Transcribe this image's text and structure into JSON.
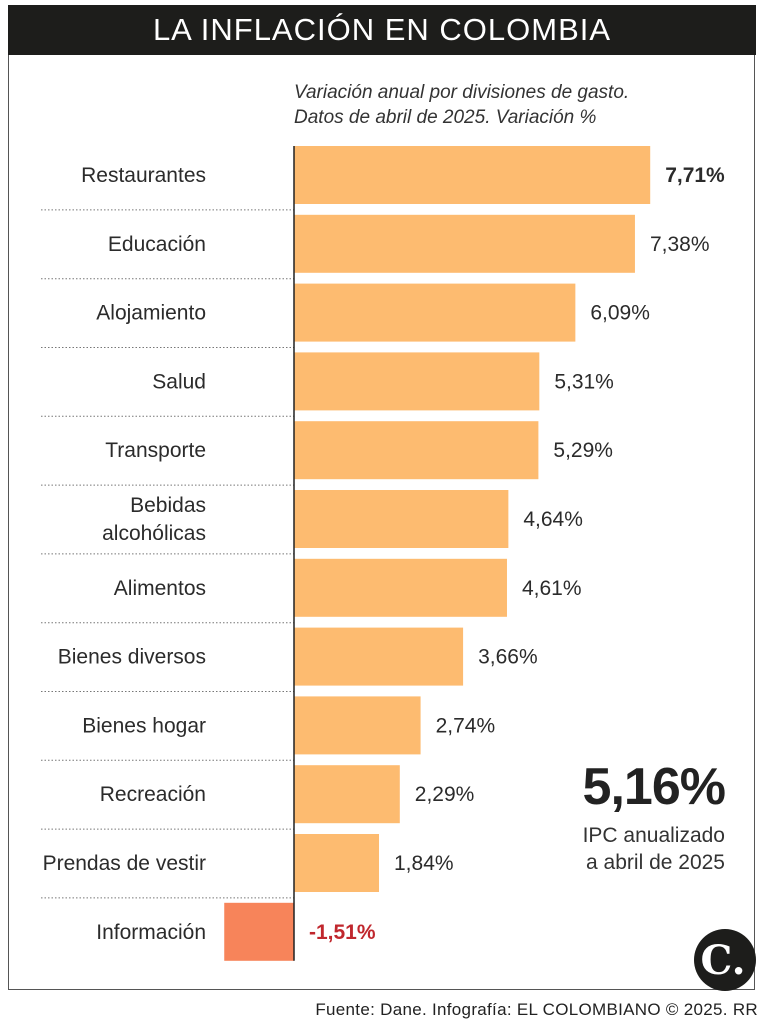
{
  "header": {
    "title": "LA INFLACIÓN EN COLOMBIA"
  },
  "subtitle": {
    "line1": "Variación anual por divisiones de gasto.",
    "line2": "Datos de abril de 2025. Variación %"
  },
  "chart_data": {
    "type": "bar",
    "orientation": "horizontal",
    "categories": [
      "Restaurantes",
      "Educación",
      "Alojamiento",
      "Salud",
      "Transporte",
      "Bebidas alcohólicas",
      "Alimentos",
      "Bienes diversos",
      "Bienes hogar",
      "Recreación",
      "Prendas de vestir",
      "Información"
    ],
    "category_lines": [
      [
        "Restaurantes"
      ],
      [
        "Educación"
      ],
      [
        "Alojamiento"
      ],
      [
        "Salud"
      ],
      [
        "Transporte"
      ],
      [
        "Bebidas",
        "alcohólicas"
      ],
      [
        "Alimentos"
      ],
      [
        "Bienes diversos"
      ],
      [
        "Bienes hogar"
      ],
      [
        "Recreación"
      ],
      [
        "Prendas de vestir"
      ],
      [
        "Información"
      ]
    ],
    "values": [
      7.71,
      7.38,
      6.09,
      5.31,
      5.29,
      4.64,
      4.61,
      3.66,
      2.74,
      2.29,
      1.84,
      -1.51
    ],
    "value_labels": [
      "7,71%",
      "7,38%",
      "6,09%",
      "5,31%",
      "5,29%",
      "4,64%",
      "4,61%",
      "3,66%",
      "2,74%",
      "2,29%",
      "1,84%",
      "-1,51%"
    ],
    "highlight_labels": [
      0,
      11
    ],
    "colors": {
      "positive": "#fdbb70",
      "negative": "#f7845a",
      "negative_label": "#c0272d",
      "text": "#2b2b2b"
    }
  },
  "summary": {
    "value": "5,16%",
    "caption_line1": "IPC anualizado",
    "caption_line2": "a abril de 2025"
  },
  "logo": {
    "letter": "C."
  },
  "source": {
    "text": "Fuente: Dane. Infografía: EL COLOMBIANO © 2025. RR"
  }
}
